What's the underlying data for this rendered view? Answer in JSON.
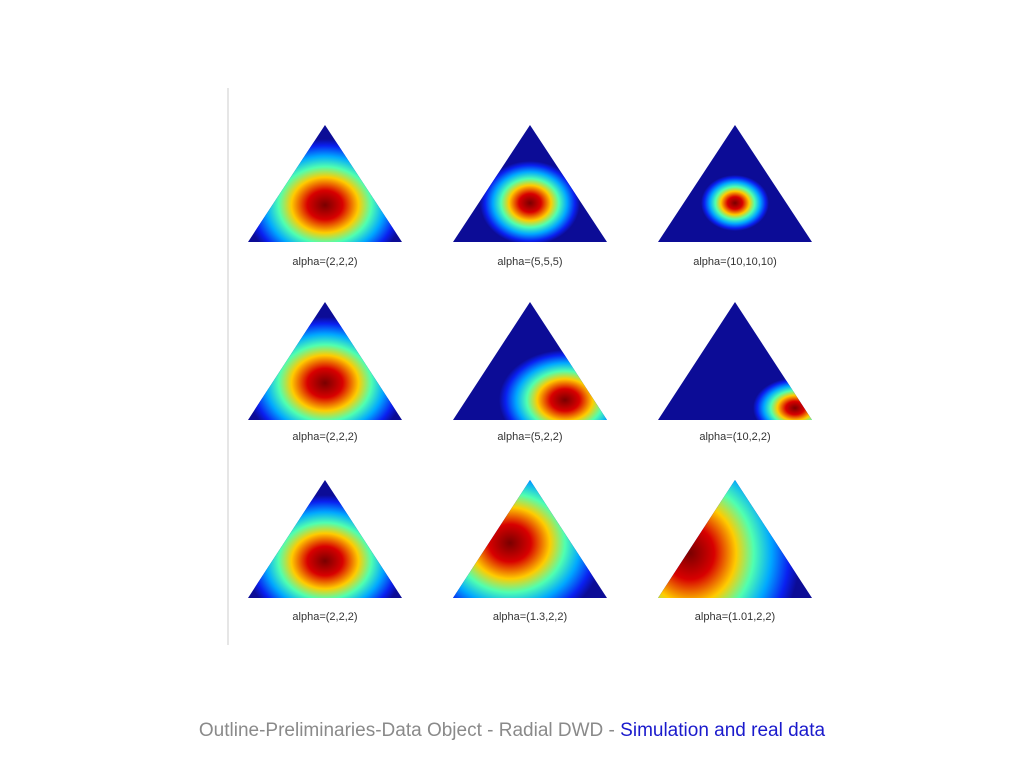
{
  "figure": {
    "panels": [
      {
        "label": "alpha=(2,2,2)"
      },
      {
        "label": "alpha=(5,5,5)"
      },
      {
        "label": "alpha=(10,10,10)"
      },
      {
        "label": "alpha=(2,2,2)"
      },
      {
        "label": "alpha=(5,2,2)"
      },
      {
        "label": "alpha=(10,2,2)"
      },
      {
        "label": "alpha=(2,2,2)"
      },
      {
        "label": "alpha=(1.3,2,2)"
      },
      {
        "label": "alpha=(1.01,2,2)"
      }
    ]
  },
  "footer": {
    "path": "Outline-Preliminaries-Data Object - Radial DWD - ",
    "current": "Simulation and real data"
  }
}
